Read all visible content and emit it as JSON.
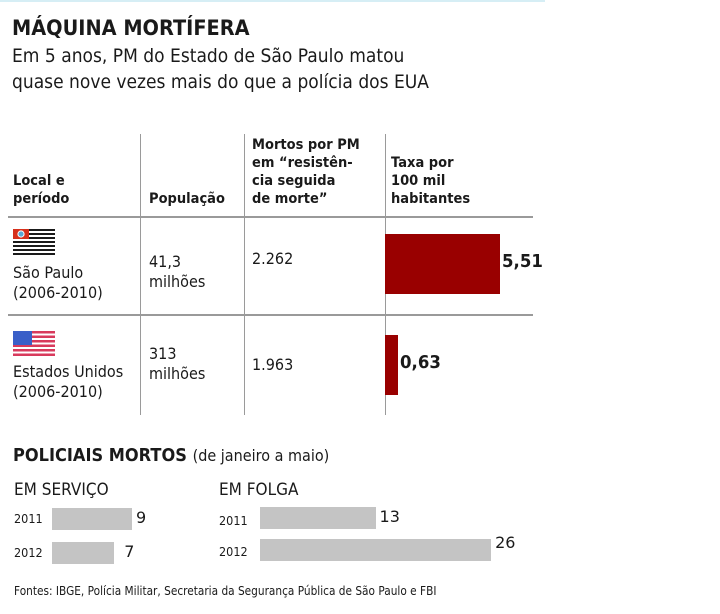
{
  "title": "MÁQUINA MORTÍFERA",
  "subtitle_lines": [
    "Em 5 anos, PM do Estado de São Paulo matou",
    "quase nove vezes mais do que a polícia dos EUA"
  ],
  "table": {
    "headers": {
      "local": [
        "Local e",
        "período"
      ],
      "populacao": [
        "População"
      ],
      "mortos": [
        "Mortos por PM",
        "em “resistên-",
        "cia seguida",
        "de morte”"
      ],
      "taxa": [
        "Taxa por",
        "100 mil",
        "habitantes"
      ]
    },
    "rows": [
      {
        "flag": "sao-paulo-flag-icon",
        "local": [
          "São Paulo",
          "(2006-2010)"
        ],
        "populacao": [
          "41,3",
          "milhões"
        ],
        "mortos": "2.262",
        "taxa": 5.51,
        "taxa_label": "5,51"
      },
      {
        "flag": "usa-flag-icon",
        "local": [
          "Estados Unidos",
          "(2006-2010)"
        ],
        "populacao": [
          "313",
          "milhões"
        ],
        "mortos": "1.963",
        "taxa": 0.63,
        "taxa_label": "0,63"
      }
    ]
  },
  "police": {
    "title": "POLICIAIS MORTOS",
    "title_sub": "(de janeiro a maio)",
    "groups": [
      {
        "label": "EM SERVIÇO",
        "rows": [
          {
            "year": "2011",
            "value": 9
          },
          {
            "year": "2012",
            "value": 7
          }
        ]
      },
      {
        "label": "EM FOLGA",
        "rows": [
          {
            "year": "2011",
            "value": 13
          },
          {
            "year": "2012",
            "value": 26
          }
        ]
      }
    ]
  },
  "source": "Fontes: IBGE, Polícia Militar, Secretaria da Segurança Pública de São Paulo e FBI",
  "colors": {
    "rate_bar": "#990000",
    "police_bar": "#c4c4c4",
    "grid": "#9a9a9a"
  },
  "chart_data": [
    {
      "type": "bar",
      "title": "Taxa por 100 mil habitantes",
      "categories": [
        "São Paulo (2006-2010)",
        "Estados Unidos (2006-2010)"
      ],
      "values": [
        5.51,
        0.63
      ],
      "orientation": "horizontal",
      "xlabel": "",
      "ylabel": ""
    },
    {
      "type": "bar",
      "title": "POLICIAIS MORTOS (de janeiro a maio)",
      "categories": [
        "2011",
        "2012"
      ],
      "series": [
        {
          "name": "EM SERVIÇO",
          "values": [
            9,
            7
          ]
        },
        {
          "name": "EM FOLGA",
          "values": [
            13,
            26
          ]
        }
      ],
      "orientation": "horizontal",
      "xlabel": "",
      "ylabel": ""
    }
  ]
}
